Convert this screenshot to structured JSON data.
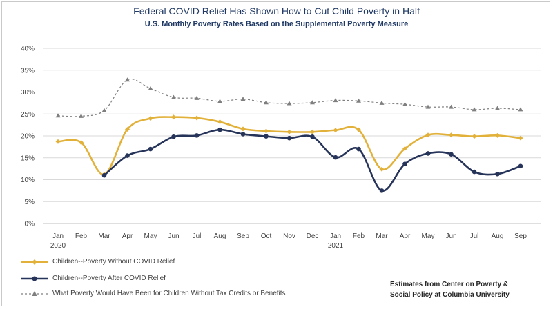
{
  "chart_data": {
    "type": "line",
    "title": "Federal COVID Relief Has Shown How to Cut Child Poverty in Half",
    "subtitle": "U.S. Monthly Poverty Rates Based on the Supplemental Poverty Measure",
    "categories": [
      "Jan",
      "Feb",
      "Mar",
      "Apr",
      "May",
      "Jun",
      "Jul",
      "Aug",
      "Sep",
      "Oct",
      "Nov",
      "Dec",
      "Jan",
      "Feb",
      "Mar",
      "Apr",
      "May",
      "Jun",
      "Jul",
      "Aug",
      "Sep"
    ],
    "year_labels": [
      {
        "index": 0,
        "label": "2020"
      },
      {
        "index": 12,
        "label": "2021"
      }
    ],
    "yticks": [
      "0%",
      "5%",
      "10%",
      "15%",
      "20%",
      "25%",
      "30%",
      "35%",
      "40%"
    ],
    "ylim": [
      0,
      40
    ],
    "series": [
      {
        "name": "Children--Poverty Without COVID Relief",
        "color": "#e2b13a",
        "marker": "diamond",
        "style": "solid",
        "values": [
          18.7,
          18.5,
          11.2,
          21.5,
          24.0,
          24.3,
          24.1,
          23.2,
          21.6,
          21.1,
          20.9,
          20.9,
          21.3,
          21.4,
          12.4,
          17.1,
          20.2,
          20.2,
          19.9,
          20.1,
          19.5
        ]
      },
      {
        "name": "Children--Poverty After COVID Relief",
        "color": "#27345a",
        "marker": "circle",
        "style": "solid",
        "values": [
          null,
          null,
          11.0,
          15.5,
          17.0,
          19.8,
          20.1,
          21.4,
          20.4,
          19.9,
          19.5,
          19.8,
          15.1,
          17.0,
          7.5,
          13.6,
          16.0,
          15.8,
          11.8,
          11.3,
          13.1
        ]
      },
      {
        "name": "What Poverty Would Have Been for Children Without Tax Credits or Benefits",
        "color": "#7f7f7f",
        "marker": "triangle",
        "style": "dashed",
        "values": [
          24.6,
          24.5,
          25.8,
          32.8,
          30.8,
          28.8,
          28.6,
          27.9,
          28.4,
          27.6,
          27.4,
          27.6,
          28.1,
          28.0,
          27.5,
          27.2,
          26.6,
          26.6,
          26.0,
          26.3,
          26.0
        ]
      }
    ],
    "grid": true,
    "legend_position": "bottom-left"
  },
  "source_note": {
    "line1": "Estimates from Center on Poverty &",
    "line2": "Social Policy at Columbia University"
  }
}
